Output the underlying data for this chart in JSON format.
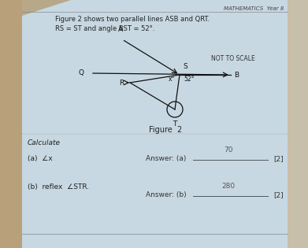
{
  "bg_main": "#c8d8e2",
  "bg_left_strip": "#c2a882",
  "bg_right_strip": "#d4c8b8",
  "header_text": "MATHEMATICS  Year 8",
  "line1": "Figure 2 shows two parallel lines ASB and QRT.",
  "line2": "RS = ST and angle BST = 52°.",
  "not_to_scale": "NOT TO SCALE",
  "figure_label": "Figure  2",
  "calculate_text": "Calculate",
  "part_a_label": "(a)  ∠x",
  "part_b_label": "(b)  reflex  ∠STR.",
  "answer_a_label": "Answer: (a)",
  "answer_b_label": "Answer: (b)",
  "answer_a_value": "70",
  "answer_b_value": "280",
  "marks_a": "[2]",
  "marks_b": "[2]",
  "angle_52_label": "52°",
  "angle_x_label": "x°",
  "fig_width": 3.91,
  "fig_height": 3.15,
  "dpi": 100
}
